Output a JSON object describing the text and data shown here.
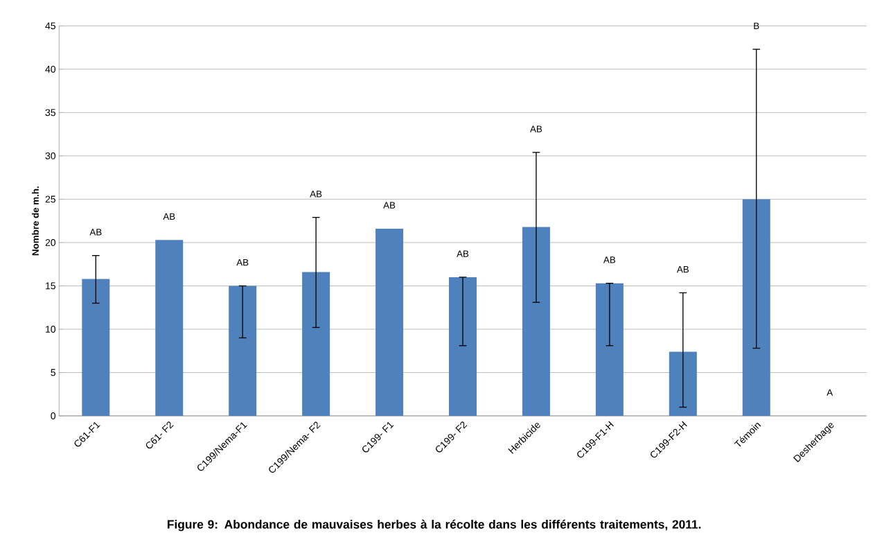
{
  "chart_data": {
    "type": "bar",
    "title": "Figure 9: Abondance de mauvaises herbes à la récolte dans les différents traitements, 2011.",
    "ylabel": "Nombre de m.h.",
    "categories": [
      "C61-F1",
      "C61- F2",
      "C199/Nema-F1",
      "C199/Nema- F2",
      "C199- F1",
      "C199- F2",
      "Herbicide",
      "C199-F1-H",
      "C199-F2-H",
      "Témoin",
      "Desherbage"
    ],
    "values": [
      15.8,
      20.3,
      15.0,
      16.6,
      21.6,
      16.0,
      21.8,
      15.3,
      7.4,
      25.0,
      0
    ],
    "errors": [
      [
        13.0,
        18.5
      ],
      null,
      [
        9.0,
        15.0
      ],
      [
        10.2,
        22.9
      ],
      null,
      [
        8.1,
        16.0
      ],
      [
        13.1,
        30.4
      ],
      [
        8.1,
        15.3
      ],
      [
        1.0,
        14.2
      ],
      [
        7.8,
        42.3
      ],
      null
    ],
    "color": "#4f81bd",
    "ylim": [
      0,
      45
    ],
    "yticks": [
      0,
      5,
      10,
      15,
      20,
      25,
      30,
      35,
      40,
      45
    ],
    "grid": "y",
    "annotations": [
      "AB",
      "AB",
      "AB",
      "AB",
      "AB",
      "AB",
      "AB",
      "AB",
      "AB",
      "B",
      "A"
    ]
  }
}
